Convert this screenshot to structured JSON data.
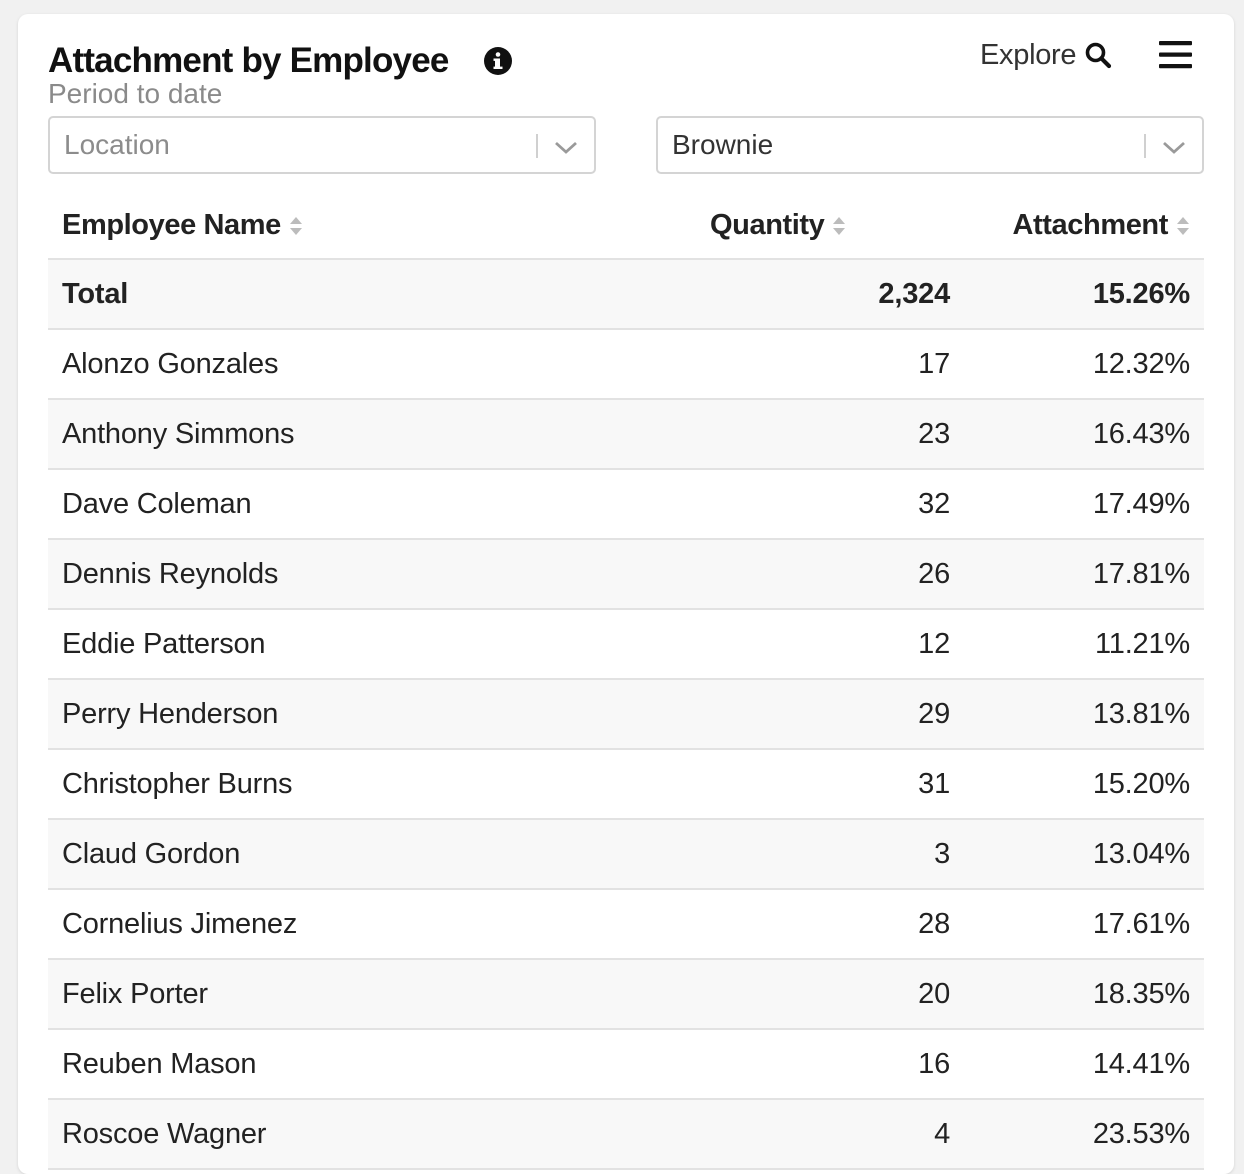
{
  "card": {
    "title": "Attachment by Employee",
    "subtitle": "Period to date",
    "explore_label": "Explore"
  },
  "filters": {
    "location": {
      "placeholder": "Location"
    },
    "item": {
      "value": "Brownie"
    }
  },
  "table": {
    "headers": [
      "Employee Name",
      "Quantity",
      "Attachment"
    ],
    "total": {
      "name": "Total",
      "quantity": "2,324",
      "attachment": "15.26%"
    },
    "rows": [
      {
        "name": "Alonzo Gonzales",
        "quantity": "17",
        "attachment": "12.32%"
      },
      {
        "name": "Anthony Simmons",
        "quantity": "23",
        "attachment": "16.43%"
      },
      {
        "name": "Dave Coleman",
        "quantity": "32",
        "attachment": "17.49%"
      },
      {
        "name": "Dennis Reynolds",
        "quantity": "26",
        "attachment": "17.81%"
      },
      {
        "name": "Eddie Patterson",
        "quantity": "12",
        "attachment": "11.21%"
      },
      {
        "name": "Perry Henderson",
        "quantity": "29",
        "attachment": "13.81%"
      },
      {
        "name": "Christopher Burns",
        "quantity": "31",
        "attachment": "15.20%"
      },
      {
        "name": "Claud Gordon",
        "quantity": "3",
        "attachment": "13.04%"
      },
      {
        "name": "Cornelius Jimenez",
        "quantity": "28",
        "attachment": "17.61%"
      },
      {
        "name": "Felix Porter",
        "quantity": "20",
        "attachment": "18.35%"
      },
      {
        "name": "Reuben Mason",
        "quantity": "16",
        "attachment": "14.41%"
      },
      {
        "name": "Roscoe Wagner",
        "quantity": "4",
        "attachment": "23.53%"
      }
    ]
  },
  "icons": {
    "info": "info-icon",
    "search": "search-icon",
    "menu": "hamburger-menu-icon",
    "dropdown": "chevron-down-icon",
    "sort": "sort-icon"
  },
  "colors": {
    "background": "#f1f1f1",
    "card": "#ffffff",
    "text": "#222222",
    "muted": "#8a8a8a",
    "row_shade": "#f8f8f8",
    "border": "#e2e2e2"
  }
}
